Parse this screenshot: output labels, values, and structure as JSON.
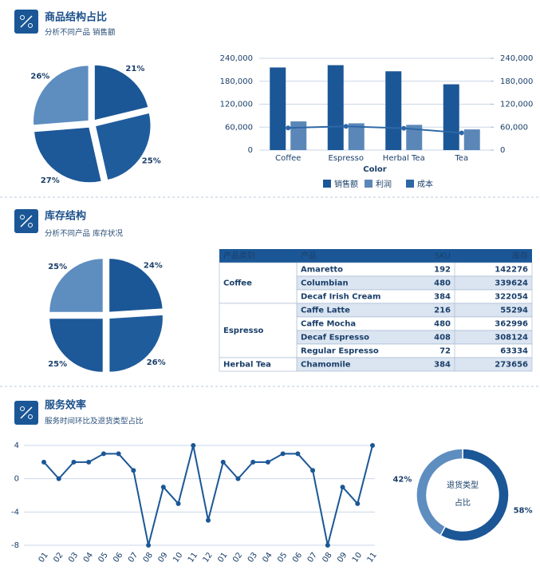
{
  "sections": [
    {
      "title": "商品结构占比",
      "subtitle": "分析不同产品 销售额"
    },
    {
      "title": "库存结构",
      "subtitle": "分析不同产品 库存状况"
    },
    {
      "title": "服务效率",
      "subtitle": "服务时间环比及退货类型占比"
    }
  ],
  "chart_data": [
    {
      "type": "pie",
      "values": [
        21,
        25,
        27,
        26
      ],
      "value_labels": [
        "21%",
        "25%",
        "27%",
        "26%"
      ],
      "colors": [
        "#1b5796",
        "#1f5c9c",
        "#1d5898",
        "#5e8dc0"
      ]
    },
    {
      "type": "bar",
      "categories": [
        "Coffee",
        "Espresso",
        "Herbal Tea",
        "Tea"
      ],
      "xlabel": "Color",
      "series": [
        {
          "name": "销售额",
          "color": "#1b5796",
          "values": [
            216000,
            222000,
            206000,
            172000
          ]
        },
        {
          "name": "利润",
          "color": "#5b87b8",
          "values": [
            75000,
            70000,
            66000,
            54000
          ]
        },
        {
          "name": "成本",
          "color": "#2d67a6",
          "values": [
            58000,
            62000,
            57000,
            45000
          ],
          "axis": "y2",
          "kind": "line"
        }
      ],
      "ylim": [
        0,
        240000
      ],
      "yticks": [
        0,
        {
          "value": 60000,
          "label": "60,000"
        },
        {
          "value": 120000,
          "label": "120,000"
        },
        {
          "value": 180000,
          "label": "180,000"
        },
        {
          "value": 240000,
          "label": "240,000"
        }
      ],
      "y2lim": [
        0,
        240000
      ],
      "y2ticks": [
        0,
        {
          "value": 60000,
          "label": "60,000"
        },
        {
          "value": 120000,
          "label": "120,000"
        },
        {
          "value": 180000,
          "label": "180,000"
        },
        {
          "value": 240000,
          "label": "240,000"
        }
      ],
      "grid": true,
      "legend": "bottom"
    },
    {
      "type": "pie",
      "values": [
        24,
        26,
        25,
        25
      ],
      "value_labels": [
        "24%",
        "26%",
        "25%",
        "25%"
      ],
      "colors": [
        "#1b5796",
        "#1f5c9c",
        "#1d5898",
        "#5e8dc0"
      ]
    },
    {
      "type": "line",
      "categories": [
        "01",
        "02",
        "03",
        "04",
        "05",
        "06",
        "07",
        "08",
        "09",
        "10",
        "11",
        "12",
        "01",
        "02",
        "03",
        "04",
        "05",
        "06",
        "07",
        "08",
        "09",
        "10",
        "11"
      ],
      "values": [
        2,
        0,
        2,
        2,
        3,
        3,
        1,
        -8,
        -1,
        -3,
        4,
        -5,
        2,
        0,
        2,
        2,
        3,
        3,
        1,
        -8,
        -1,
        -3,
        4
      ],
      "color": "#1b5796",
      "ylim": [
        -8,
        4
      ],
      "yticks": [
        -8,
        -4,
        0,
        4
      ],
      "grid": true
    },
    {
      "type": "donut",
      "title": [
        "退货类型",
        "占比"
      ],
      "values": [
        58,
        42
      ],
      "value_labels": [
        "58%",
        "42%"
      ],
      "colors": [
        "#1b5796",
        "#5e8dc0"
      ]
    }
  ],
  "table": {
    "headers": [
      "产品类别",
      "产品",
      "SKU",
      "库存"
    ],
    "groups": [
      {
        "category": "Coffee",
        "items": [
          {
            "product": "Amaretto",
            "sku": 192,
            "stock": 142276
          },
          {
            "product": "Columbian",
            "sku": 480,
            "stock": 339624
          },
          {
            "product": "Decaf Irish Cream",
            "sku": 384,
            "stock": 322054
          }
        ]
      },
      {
        "category": "Espresso",
        "items": [
          {
            "product": "Caffe Latte",
            "sku": 216,
            "stock": 55294
          },
          {
            "product": "Caffe Mocha",
            "sku": 480,
            "stock": 362996
          },
          {
            "product": "Decaf Espresso",
            "sku": 408,
            "stock": 308124
          },
          {
            "product": "Regular Espresso",
            "sku": 72,
            "stock": 63334
          }
        ]
      },
      {
        "category": "Herbal Tea",
        "items": [
          {
            "product": "Chamomile",
            "sku": 384,
            "stock": 273656
          }
        ]
      }
    ]
  }
}
